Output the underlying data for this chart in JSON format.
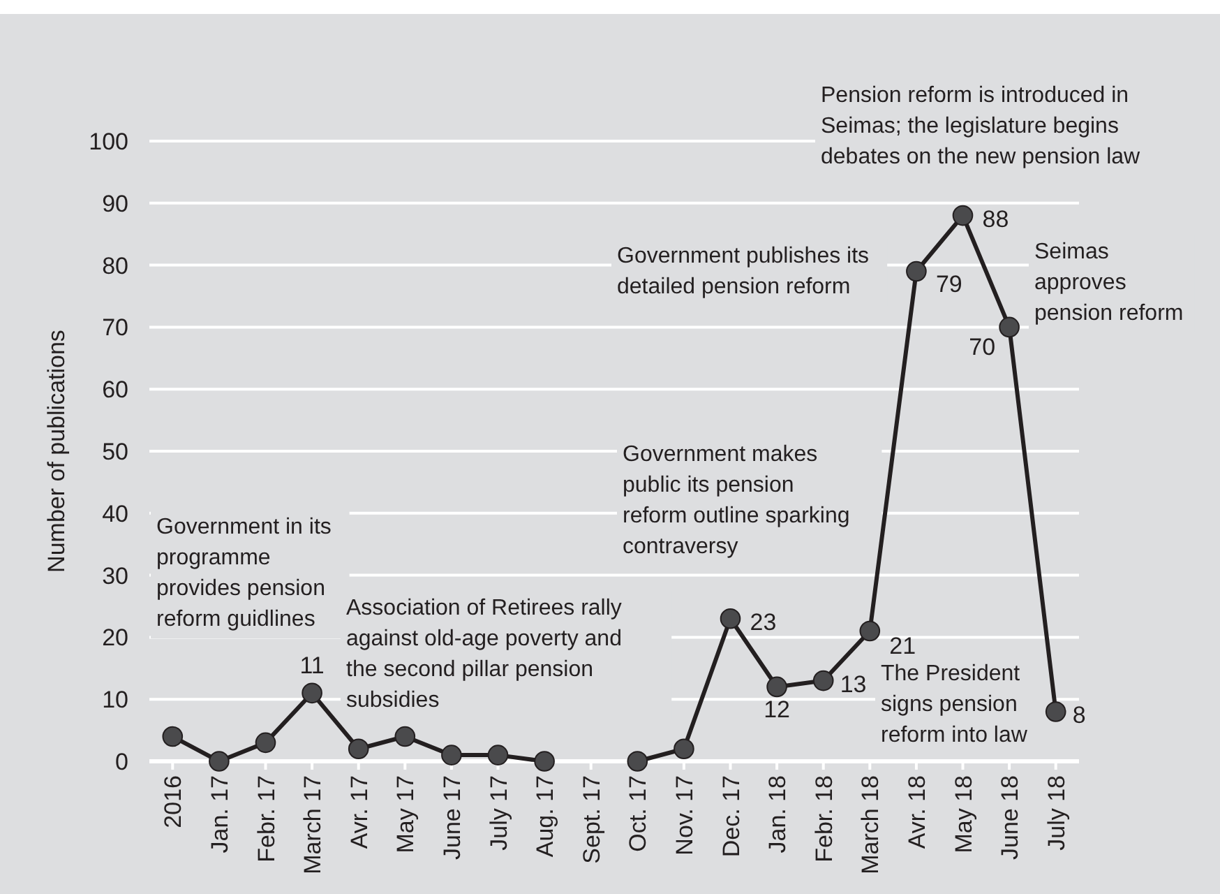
{
  "chart_data": {
    "type": "line",
    "ylabel": "Number of publications",
    "categories": [
      "2016",
      "Jan. 17",
      "Febr. 17",
      "March 17",
      "Avr. 17",
      "May 17",
      "June 17",
      "July 17",
      "Aug. 17",
      "Sept. 17",
      "Oct. 17",
      "Nov. 17",
      "Dec. 17",
      "Jan. 18",
      "Febr. 18",
      "March 18",
      "Avr. 18",
      "May 18",
      "June 18",
      "July 18"
    ],
    "series": [
      {
        "color": "#231f20",
        "values": [
          4,
          0,
          3,
          11,
          2,
          4,
          1,
          1,
          0,
          null,
          0,
          2,
          23,
          12,
          13,
          21,
          79,
          88,
          70,
          8
        ],
        "value_labels": [
          null,
          null,
          null,
          "11",
          null,
          null,
          null,
          null,
          null,
          null,
          null,
          null,
          "23",
          "12",
          "13",
          "21",
          "79",
          "88",
          "70",
          "8"
        ]
      }
    ],
    "ylim": [
      0,
      100
    ],
    "yticks": [
      0,
      10,
      20,
      30,
      40,
      50,
      60,
      70,
      80,
      90,
      100
    ],
    "grid": "y",
    "marker": "circle",
    "annotations": [
      "Government in its\nprogramme\nprovides pension\nreform guidlines",
      "Association of Retirees rally\nagainst old-age poverty and\nthe second pillar pension\nsubsidies",
      "Government makes\npublic its pension\nreform outline sparking\ncontraversy",
      "Government publishes its\ndetailed pension reform",
      "Pension reform is introduced in\nSeimas; the legislature begins\ndebates on the new pension law",
      "Seimas\napproves\npension reform",
      "The President\nsigns pension\nreform into law"
    ]
  }
}
